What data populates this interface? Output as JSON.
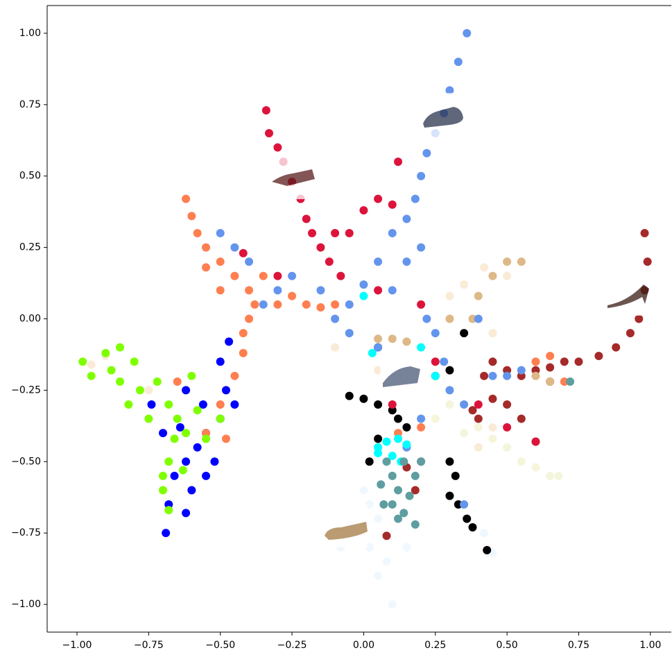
{
  "chart_data": {
    "type": "scatter",
    "xlim": [
      -1.104,
      1.073
    ],
    "ylim": [
      -1.097,
      1.097
    ],
    "marker_radius": 6,
    "xticks": [
      {
        "value": -1,
        "label": "−1.00"
      },
      {
        "value": -0.75,
        "label": "−0.75"
      },
      {
        "value": -0.5,
        "label": "−0.50"
      },
      {
        "value": -0.25,
        "label": "−0.25"
      },
      {
        "value": 0,
        "label": "0.00"
      },
      {
        "value": 0.25,
        "label": "0.25"
      },
      {
        "value": 0.5,
        "label": "0.50"
      },
      {
        "value": 0.75,
        "label": "0.75"
      },
      {
        "value": 1,
        "label": "1.00"
      }
    ],
    "yticks": [
      {
        "value": -1,
        "label": "−1.00"
      },
      {
        "value": -0.75,
        "label": "−0.75"
      },
      {
        "value": -0.5,
        "label": "−0.50"
      },
      {
        "value": -0.25,
        "label": "−0.25"
      },
      {
        "value": 0,
        "label": "0.00"
      },
      {
        "value": 0.25,
        "label": "0.25"
      },
      {
        "value": 0.5,
        "label": "0.50"
      },
      {
        "value": 0.75,
        "label": "0.75"
      },
      {
        "value": 1,
        "label": "1.00"
      }
    ],
    "series": [
      {
        "color": "#f0f8ff",
        "x": [
          0.05,
          0.02,
          0.05,
          0.1,
          0.08,
          -0.05,
          0.0,
          0.02,
          0.45,
          0.42,
          0.15,
          -0.08
        ],
        "values": [
          -0.7,
          -0.8,
          -0.9,
          -1.0,
          -0.85,
          -0.72,
          -0.6,
          -0.65,
          -0.82,
          -0.75,
          -0.8,
          -0.8
        ]
      },
      {
        "color": "#f5f5dc",
        "x": [
          0.3,
          0.4,
          0.5,
          0.55,
          0.6,
          0.65,
          0.68,
          0.45,
          0.35,
          0.25
        ],
        "values": [
          -0.3,
          -0.38,
          -0.45,
          -0.5,
          -0.52,
          -0.55,
          -0.55,
          -0.42,
          -0.4,
          -0.35
        ]
      },
      {
        "color": "#faebd7",
        "x": [
          -0.05,
          0.05,
          0.3,
          0.35,
          0.42,
          0.5,
          0.45,
          -0.1,
          -0.9,
          -0.95,
          -0.75,
          0.4,
          0.45
        ],
        "values": [
          -0.05,
          -0.18,
          0.08,
          0.12,
          0.18,
          0.15,
          -0.05,
          -0.1,
          -0.13,
          -0.16,
          -0.25,
          -0.45,
          -0.38
        ]
      },
      {
        "color": "#0000ff",
        "x": [
          -0.69,
          -0.68,
          -0.66,
          -0.62,
          -0.58,
          -0.55,
          -0.5,
          -0.48,
          -0.5,
          -0.47,
          -0.6,
          -0.55,
          -0.52,
          -0.62,
          -0.74,
          -0.7,
          -0.64,
          -0.56,
          -0.45,
          -0.62
        ],
        "values": [
          -0.75,
          -0.65,
          -0.55,
          -0.5,
          -0.45,
          -0.4,
          -0.35,
          -0.25,
          -0.15,
          -0.08,
          -0.6,
          -0.55,
          -0.5,
          -0.68,
          -0.3,
          -0.4,
          -0.38,
          -0.3,
          -0.3,
          -0.25
        ]
      },
      {
        "color": "#ff7f50",
        "x": [
          -0.62,
          -0.6,
          -0.58,
          -0.55,
          -0.5,
          -0.45,
          -0.4,
          -0.38,
          -0.4,
          -0.42,
          -0.42,
          -0.45,
          -0.3,
          -0.25,
          -0.2,
          -0.15,
          -0.1,
          -0.35,
          -0.5,
          -0.55,
          -0.5,
          -0.55,
          -0.65,
          0.6,
          0.65,
          0.7,
          0.12,
          0.2,
          -0.48
        ],
        "values": [
          0.42,
          0.36,
          0.3,
          0.25,
          0.2,
          0.15,
          0.1,
          0.05,
          0.0,
          -0.05,
          -0.12,
          -0.2,
          0.05,
          0.08,
          0.05,
          0.04,
          0.05,
          0.15,
          0.1,
          0.18,
          -0.3,
          -0.4,
          -0.22,
          -0.15,
          -0.13,
          -0.22,
          -0.4,
          -0.38,
          -0.42
        ]
      },
      {
        "color": "#7fff00",
        "x": [
          -0.98,
          -0.95,
          -0.9,
          -0.85,
          -0.8,
          -0.85,
          -0.78,
          -0.72,
          -0.68,
          -0.65,
          -0.62,
          -0.68,
          -0.7,
          -0.68,
          -0.7,
          -0.6,
          -0.58,
          -0.55,
          -0.5,
          -0.75,
          -0.82,
          -0.88,
          -0.63,
          -0.66
        ],
        "values": [
          -0.15,
          -0.2,
          -0.12,
          -0.1,
          -0.15,
          -0.22,
          -0.25,
          -0.22,
          -0.3,
          -0.35,
          -0.4,
          -0.5,
          -0.6,
          -0.67,
          -0.55,
          -0.2,
          -0.32,
          -0.42,
          -0.35,
          -0.35,
          -0.3,
          -0.18,
          -0.53,
          -0.42
        ]
      },
      {
        "color": "#a52a2a",
        "x": [
          0.98,
          0.99,
          0.98,
          0.96,
          0.93,
          0.88,
          0.82,
          0.75,
          0.7,
          0.65,
          0.6,
          0.55,
          0.5,
          0.45,
          0.42,
          0.45,
          0.4,
          0.38,
          0.2,
          0.18,
          0.15,
          0.08,
          0.6,
          0.55,
          0.65,
          0.5
        ],
        "values": [
          0.3,
          0.2,
          0.1,
          0.0,
          -0.05,
          -0.1,
          -0.13,
          -0.15,
          -0.15,
          -0.17,
          -0.18,
          -0.2,
          -0.18,
          -0.15,
          -0.2,
          -0.28,
          -0.35,
          -0.32,
          -0.5,
          -0.6,
          -0.52,
          -0.76,
          -0.43,
          -0.35,
          -0.22,
          -0.3
        ]
      },
      {
        "color": "#deb887",
        "x": [
          0.05,
          0.1,
          0.15,
          0.3,
          0.38,
          0.4,
          0.45,
          0.5,
          0.55,
          0.6,
          0.65
        ],
        "values": [
          -0.07,
          -0.07,
          -0.08,
          0.0,
          0.0,
          0.08,
          0.15,
          0.2,
          0.2,
          -0.2,
          -0.22
        ]
      },
      {
        "color": "#000000",
        "x": [
          -0.05,
          0.0,
          0.05,
          0.1,
          0.12,
          0.15,
          0.05,
          0.02,
          0.3,
          0.32,
          0.3,
          0.33,
          0.36,
          0.38,
          0.43,
          0.25,
          0.3,
          0.35,
          0.05
        ],
        "values": [
          -0.27,
          -0.28,
          -0.3,
          -0.32,
          -0.35,
          -0.38,
          -0.42,
          -0.5,
          -0.5,
          -0.55,
          -0.62,
          -0.65,
          -0.7,
          -0.73,
          -0.81,
          -0.2,
          -0.18,
          -0.05,
          -0.1
        ]
      },
      {
        "color": "#6495ed",
        "x": [
          0.36,
          0.33,
          0.3,
          0.28,
          0.25,
          0.22,
          0.2,
          0.18,
          0.15,
          0.1,
          0.05,
          0.0,
          0.1,
          0.15,
          0.2,
          0.22,
          0.25,
          0.28,
          0.3,
          0.35,
          -0.05,
          -0.1,
          -0.15,
          -0.25,
          -0.3,
          -0.35,
          -0.4,
          -0.45,
          -0.5,
          0.4,
          0.45,
          0.5,
          0.55,
          0.2,
          0.15,
          0.35,
          -0.05,
          0.05
        ],
        "values": [
          1.0,
          0.9,
          0.8,
          0.72,
          0.65,
          0.58,
          0.5,
          0.42,
          0.35,
          0.3,
          0.2,
          0.12,
          0.1,
          0.2,
          0.25,
          0.0,
          -0.05,
          -0.15,
          -0.25,
          -0.3,
          0.05,
          0.0,
          0.1,
          0.15,
          0.1,
          0.05,
          0.2,
          0.25,
          0.3,
          0.0,
          -0.2,
          -0.2,
          -0.18,
          -0.35,
          -0.45,
          -0.65,
          -0.05,
          -0.1
        ]
      },
      {
        "color": "#dc143c",
        "x": [
          -0.34,
          -0.33,
          -0.3,
          -0.28,
          -0.25,
          -0.22,
          -0.2,
          -0.18,
          -0.15,
          -0.12,
          -0.1,
          -0.05,
          -0.08,
          0.0,
          0.05,
          0.1,
          0.12,
          -0.3,
          -0.42,
          0.05,
          0.2,
          0.25,
          0.4,
          0.5,
          0.6,
          0.1
        ],
        "values": [
          0.73,
          0.65,
          0.6,
          0.55,
          0.48,
          0.42,
          0.35,
          0.3,
          0.25,
          0.2,
          0.3,
          0.3,
          0.15,
          0.38,
          0.42,
          0.4,
          0.55,
          0.15,
          0.23,
          0.1,
          0.05,
          -0.15,
          -0.3,
          -0.38,
          -0.43,
          -0.3
        ]
      },
      {
        "color": "#00ffff",
        "x": [
          0.05,
          0.08,
          0.12,
          0.15,
          0.1,
          0.05,
          0.0,
          0.2,
          0.25,
          0.03,
          0.13
        ],
        "values": [
          -0.45,
          -0.43,
          -0.42,
          -0.44,
          -0.48,
          -0.47,
          0.08,
          -0.1,
          -0.2,
          -0.12,
          -0.5
        ]
      },
      {
        "color": "#5f9ea0",
        "x": [
          0.08,
          0.1,
          0.12,
          0.1,
          0.12,
          0.14,
          0.16,
          0.18,
          0.06,
          0.07,
          0.18,
          0.2,
          0.72,
          0.14
        ],
        "values": [
          -0.5,
          -0.55,
          -0.6,
          -0.65,
          -0.7,
          -0.68,
          -0.62,
          -0.72,
          -0.58,
          -0.65,
          -0.55,
          -0.5,
          -0.22,
          -0.5
        ]
      }
    ]
  }
}
